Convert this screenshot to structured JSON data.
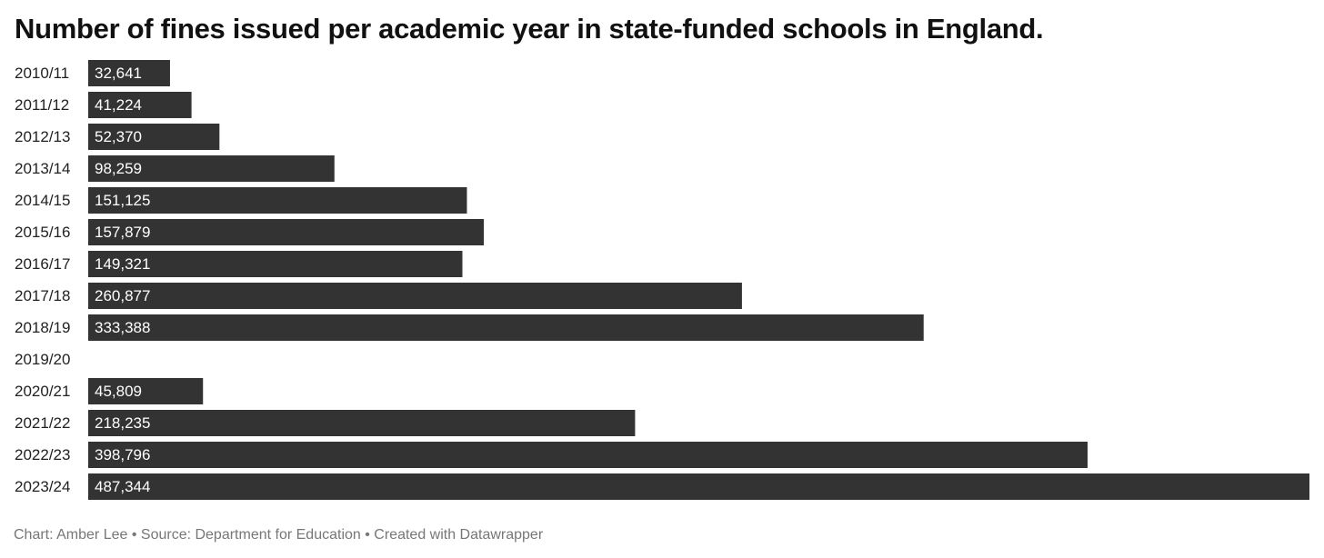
{
  "chart_data": {
    "type": "bar",
    "orientation": "horizontal",
    "title": "Number of fines issued per academic year in state-funded schools in England.",
    "categories": [
      "2010/11",
      "2011/12",
      "2012/13",
      "2013/14",
      "2014/15",
      "2015/16",
      "2016/17",
      "2017/18",
      "2018/19",
      "2019/20",
      "2020/21",
      "2021/22",
      "2022/23",
      "2023/24"
    ],
    "values": [
      32641,
      41224,
      52370,
      98259,
      151125,
      157879,
      149321,
      260877,
      333388,
      null,
      45809,
      218235,
      398796,
      487344
    ],
    "value_labels": [
      "32,641",
      "41,224",
      "52,370",
      "98,259",
      "151,125",
      "157,879",
      "149,321",
      "260,877",
      "333,388",
      "",
      "45,809",
      "218,235",
      "398,796",
      "487,344"
    ],
    "xlim": [
      0,
      487344
    ],
    "grid": false,
    "legend": "none",
    "bar_color": "#333333",
    "label_color": "#ffffff"
  },
  "footer": {
    "text": "Chart: Amber Lee • Source: Department for Education • Created with Datawrapper"
  }
}
